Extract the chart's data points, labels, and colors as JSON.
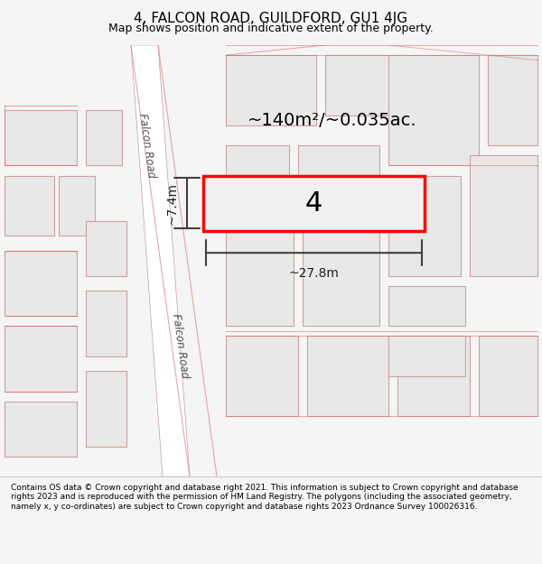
{
  "title": "4, FALCON ROAD, GUILDFORD, GU1 4JG",
  "subtitle": "Map shows position and indicative extent of the property.",
  "footer": "Contains OS data © Crown copyright and database right 2021. This information is subject to Crown copyright and database rights 2023 and is reproduced with the permission of HM Land Registry. The polygons (including the associated geometry, namely x, y co-ordinates) are subject to Crown copyright and database rights 2023 Ordnance Survey 100026316.",
  "bg_color": "#f5f5f5",
  "map_bg": "#ffffff",
  "road_color": "#ffffff",
  "block_color": "#e8e8e8",
  "block_outline": "#c8b8b8",
  "highlight_color": "#ff0000",
  "road_label": "Falcon Road",
  "area_label": "~140m²/~0.035ac.",
  "width_label": "~27.8m",
  "height_label": "~7.4m",
  "property_number": "4"
}
